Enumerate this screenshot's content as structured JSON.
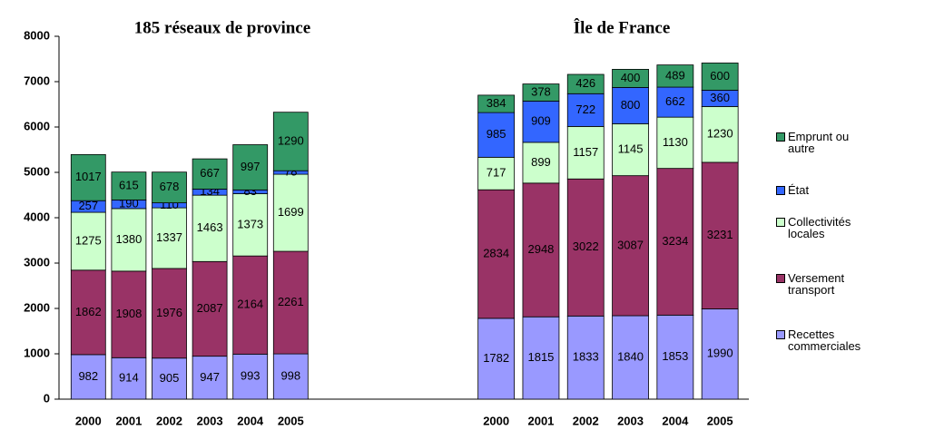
{
  "chart_data": {
    "type": "bar",
    "stacked": true,
    "ylim": [
      0,
      8000
    ],
    "yticks": [
      0,
      1000,
      2000,
      3000,
      4000,
      5000,
      6000,
      7000,
      8000
    ],
    "series": [
      {
        "name": "Recettes commerciales",
        "color": "#9999ff"
      },
      {
        "name": "Versement transport",
        "color": "#993366"
      },
      {
        "name": "Collectivités locales",
        "color": "#ccffcc"
      },
      {
        "name": "État",
        "color": "#3366ff"
      },
      {
        "name": "Emprunt ou autre",
        "color": "#339966"
      }
    ],
    "groups": [
      {
        "title": "185 réseaux de province",
        "categories": [
          "2000",
          "2001",
          "2002",
          "2003",
          "2004",
          "2005"
        ],
        "values": [
          [
            982,
            914,
            905,
            947,
            993,
            998
          ],
          [
            1862,
            1908,
            1976,
            2087,
            2164,
            2261
          ],
          [
            1275,
            1380,
            1337,
            1463,
            1373,
            1699
          ],
          [
            257,
            190,
            110,
            134,
            83,
            78
          ],
          [
            1017,
            615,
            678,
            667,
            997,
            1290
          ]
        ]
      },
      {
        "title": "Île de France",
        "categories": [
          "2000",
          "2001",
          "2002",
          "2003",
          "2004",
          "2005"
        ],
        "values": [
          [
            1782,
            1815,
            1833,
            1840,
            1853,
            1990
          ],
          [
            2834,
            2948,
            3022,
            3087,
            3234,
            3231
          ],
          [
            717,
            899,
            1157,
            1145,
            1130,
            1230
          ],
          [
            985,
            909,
            722,
            800,
            662,
            360
          ],
          [
            384,
            378,
            426,
            400,
            489,
            600
          ]
        ]
      }
    ]
  }
}
